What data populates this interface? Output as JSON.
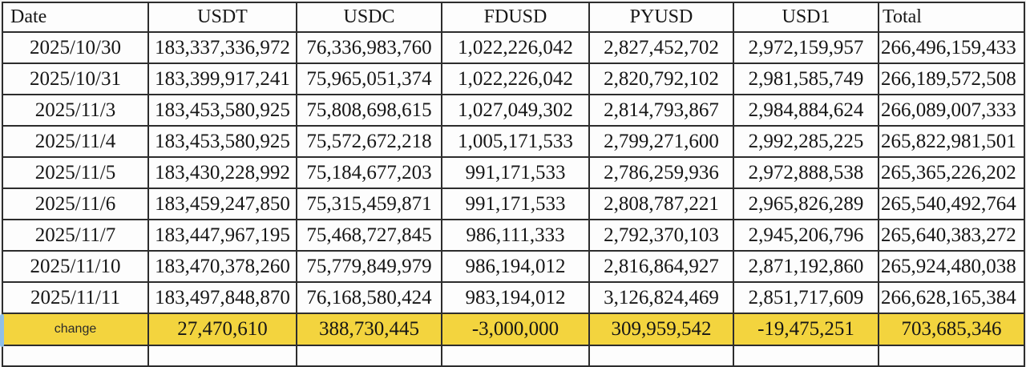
{
  "colors": {
    "highlight_yellow": "#F3D43E",
    "table_border": "#2d2d2d",
    "cell_background": "#fdfdfd",
    "page_background": "#f2f2f2",
    "marker_blue": "#8FBFE8"
  },
  "chart_data": {
    "type": "table",
    "columns": [
      "Date",
      "USDT",
      "USDC",
      "FDUSD",
      "PYUSD",
      "USD1",
      "Total"
    ],
    "rows": [
      [
        "2025/10/30",
        "183,337,336,972",
        "76,336,983,760",
        "1,022,226,042",
        "2,827,452,702",
        "2,972,159,957",
        "266,496,159,433"
      ],
      [
        "2025/10/31",
        "183,399,917,241",
        "75,965,051,374",
        "1,022,226,042",
        "2,820,792,102",
        "2,981,585,749",
        "266,189,572,508"
      ],
      [
        "2025/11/3",
        "183,453,580,925",
        "75,808,698,615",
        "1,027,049,302",
        "2,814,793,867",
        "2,984,884,624",
        "266,089,007,333"
      ],
      [
        "2025/11/4",
        "183,453,580,925",
        "75,572,672,218",
        "1,005,171,533",
        "2,799,271,600",
        "2,992,285,225",
        "265,822,981,501"
      ],
      [
        "2025/11/5",
        "183,430,228,992",
        "75,184,677,203",
        "991,171,533",
        "2,786,259,936",
        "2,972,888,538",
        "265,365,226,202"
      ],
      [
        "2025/11/6",
        "183,459,247,850",
        "75,315,459,871",
        "991,171,533",
        "2,808,787,221",
        "2,965,826,289",
        "265,540,492,764"
      ],
      [
        "2025/11/7",
        "183,447,967,195",
        "75,468,727,845",
        "986,111,333",
        "2,792,370,103",
        "2,945,206,796",
        "265,640,383,272"
      ],
      [
        "2025/11/10",
        "183,470,378,260",
        "75,779,849,979",
        "986,194,012",
        "2,816,864,927",
        "2,871,192,860",
        "265,924,480,038"
      ],
      [
        "2025/11/11",
        "183,497,848,870",
        "76,168,580,424",
        "983,194,012",
        "3,126,824,469",
        "2,851,717,609",
        "266,628,165,384"
      ]
    ],
    "change_row": {
      "label": "change",
      "values": [
        "27,470,610",
        "388,730,445",
        "-3,000,000",
        "309,959,542",
        "-19,475,251",
        "703,685,346"
      ]
    }
  }
}
